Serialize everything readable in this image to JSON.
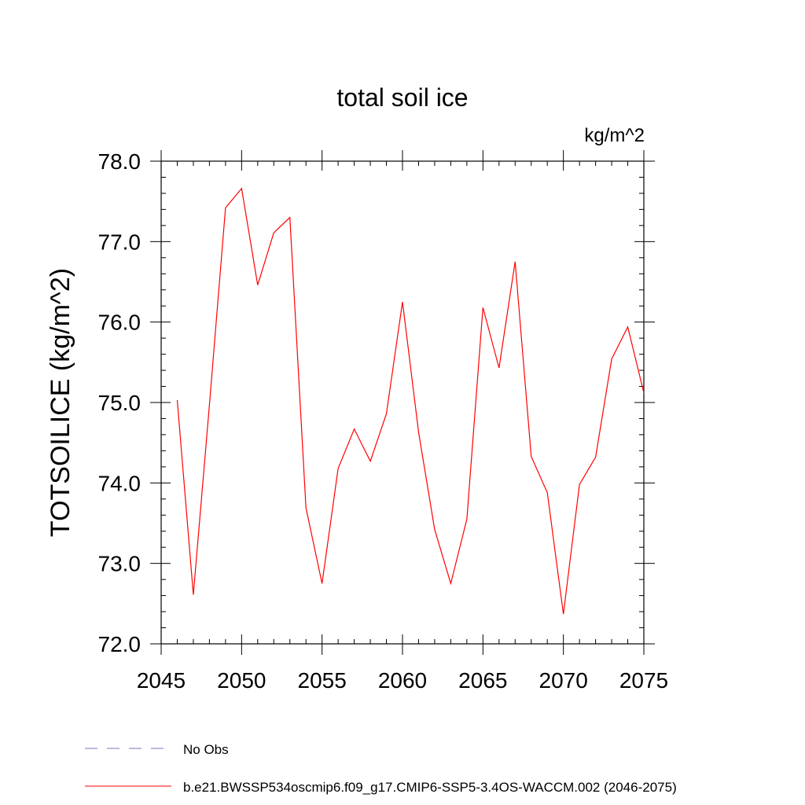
{
  "chart_data": {
    "type": "line",
    "title": "total soil ice",
    "units_label": "kg/m^2",
    "ylabel": "TOTSOILICE  (kg/m^2)",
    "xlabel": "",
    "xlim": [
      2045,
      2075
    ],
    "ylim": [
      72.0,
      78.0
    ],
    "x_ticks": [
      2045,
      2050,
      2055,
      2060,
      2065,
      2070,
      2075
    ],
    "y_ticks": [
      "72.0",
      "73.0",
      "74.0",
      "75.0",
      "76.0",
      "77.0",
      "78.0"
    ],
    "grid": false,
    "legend_position": "bottom-left",
    "series": [
      {
        "name": "b.e21.BWSSP534oscmip6.f09_g17.CMIP6-SSP5-3.4OS-WACCM.002 (2046-2075)",
        "color": "#ff0000",
        "style": "solid",
        "x": [
          2046,
          2047,
          2048,
          2049,
          2050,
          2051,
          2052,
          2053,
          2054,
          2055,
          2056,
          2057,
          2058,
          2059,
          2060,
          2061,
          2062,
          2063,
          2064,
          2065,
          2066,
          2067,
          2068,
          2069,
          2070,
          2071,
          2072,
          2073,
          2074,
          2075
        ],
        "values": [
          75.03,
          72.61,
          74.97,
          77.42,
          77.66,
          76.46,
          77.11,
          77.3,
          73.69,
          72.75,
          74.18,
          74.67,
          74.27,
          74.86,
          76.25,
          74.63,
          73.42,
          72.75,
          73.55,
          76.18,
          75.43,
          76.75,
          74.33,
          73.88,
          72.37,
          73.98,
          74.32,
          75.54,
          75.94,
          75.12
        ]
      }
    ],
    "legend": [
      {
        "label": "No Obs",
        "color": "#7f6fbf",
        "style": "dashed"
      },
      {
        "label": "b.e21.BWSSP534oscmip6.f09_g17.CMIP6-SSP5-3.4OS-WACCM.002 (2046-2075)",
        "color": "#ff0000",
        "style": "solid"
      }
    ]
  }
}
